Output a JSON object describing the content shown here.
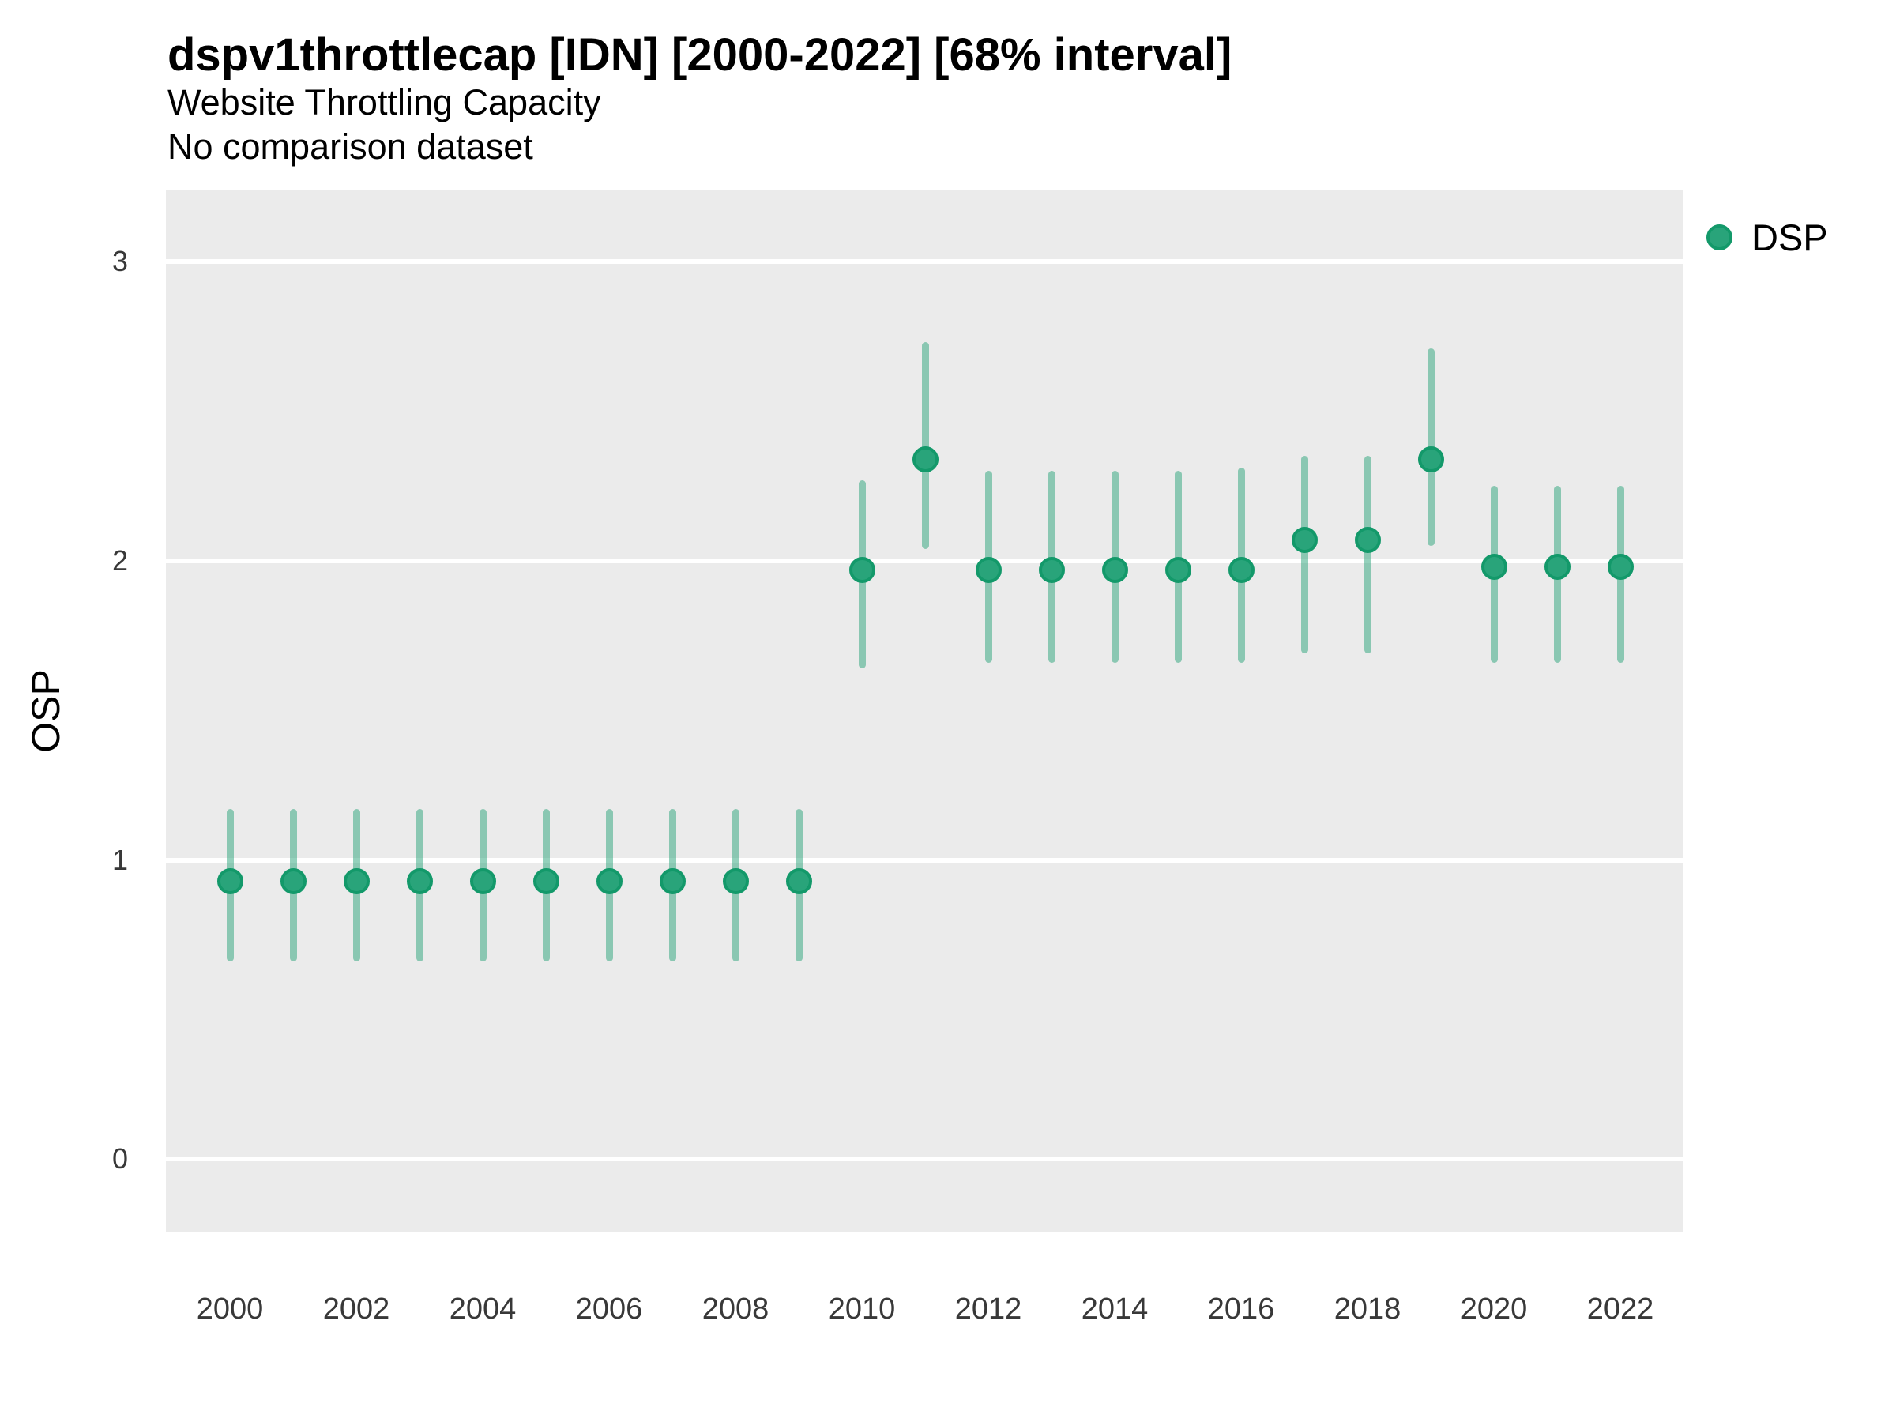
{
  "header": {
    "title": "dspv1throttlecap [IDN] [2000-2022] [68% interval]",
    "subtitle": "Website Throttling Capacity",
    "note": "No comparison dataset"
  },
  "y_axis": {
    "label": "OSP",
    "ticks": [
      0,
      1,
      2,
      3
    ]
  },
  "x_axis": {
    "ticks": [
      2000,
      2002,
      2004,
      2006,
      2008,
      2010,
      2012,
      2014,
      2016,
      2018,
      2020,
      2022
    ]
  },
  "legend": {
    "position": "top-right",
    "items": [
      {
        "label": "DSP",
        "marker": "circle-icon",
        "color": "#29a47a"
      }
    ]
  },
  "colors": {
    "point_fill": "#29a47a",
    "point_border": "#13996a",
    "interval_bar": "rgba(41,164,122,0.5)",
    "panel_background": "#ebebeb",
    "gridline": "#ffffff",
    "text": "#000000",
    "tick_text": "#383838"
  },
  "chart_data": {
    "type": "pointrange-scatter",
    "title": "dspv1throttlecap [IDN] [2000-2022] [68% interval]",
    "subtitle": "Website Throttling Capacity",
    "note": "No comparison dataset",
    "xlabel": "",
    "ylabel": "OSP",
    "interval_level": "68%",
    "grid": "horizontal-major-only",
    "legend_position": "top-right",
    "xlim": [
      1999,
      2023
    ],
    "ylim": [
      -0.24,
      3.23
    ],
    "x_ticks": [
      2000,
      2002,
      2004,
      2006,
      2008,
      2010,
      2012,
      2014,
      2016,
      2018,
      2020,
      2022
    ],
    "y_ticks": [
      0,
      1,
      2,
      3
    ],
    "series": [
      {
        "name": "DSP",
        "color": "#29a47a",
        "points": [
          {
            "x": 2000,
            "y": 0.93,
            "lo": 0.66,
            "hi": 1.17
          },
          {
            "x": 2001,
            "y": 0.93,
            "lo": 0.66,
            "hi": 1.17
          },
          {
            "x": 2002,
            "y": 0.93,
            "lo": 0.66,
            "hi": 1.17
          },
          {
            "x": 2003,
            "y": 0.93,
            "lo": 0.66,
            "hi": 1.17
          },
          {
            "x": 2004,
            "y": 0.93,
            "lo": 0.66,
            "hi": 1.17
          },
          {
            "x": 2005,
            "y": 0.93,
            "lo": 0.66,
            "hi": 1.17
          },
          {
            "x": 2006,
            "y": 0.93,
            "lo": 0.66,
            "hi": 1.17
          },
          {
            "x": 2007,
            "y": 0.93,
            "lo": 0.66,
            "hi": 1.17
          },
          {
            "x": 2008,
            "y": 0.93,
            "lo": 0.66,
            "hi": 1.17
          },
          {
            "x": 2009,
            "y": 0.93,
            "lo": 0.66,
            "hi": 1.17
          },
          {
            "x": 2010,
            "y": 1.97,
            "lo": 1.64,
            "hi": 2.27
          },
          {
            "x": 2011,
            "y": 2.34,
            "lo": 2.04,
            "hi": 2.73
          },
          {
            "x": 2012,
            "y": 1.97,
            "lo": 1.66,
            "hi": 2.3
          },
          {
            "x": 2013,
            "y": 1.97,
            "lo": 1.66,
            "hi": 2.3
          },
          {
            "x": 2014,
            "y": 1.97,
            "lo": 1.66,
            "hi": 2.3
          },
          {
            "x": 2015,
            "y": 1.97,
            "lo": 1.66,
            "hi": 2.3
          },
          {
            "x": 2016,
            "y": 1.97,
            "lo": 1.66,
            "hi": 2.31
          },
          {
            "x": 2017,
            "y": 2.07,
            "lo": 1.69,
            "hi": 2.35
          },
          {
            "x": 2018,
            "y": 2.07,
            "lo": 1.69,
            "hi": 2.35
          },
          {
            "x": 2019,
            "y": 2.34,
            "lo": 2.05,
            "hi": 2.71
          },
          {
            "x": 2020,
            "y": 1.98,
            "lo": 1.66,
            "hi": 2.25
          },
          {
            "x": 2021,
            "y": 1.98,
            "lo": 1.66,
            "hi": 2.25
          },
          {
            "x": 2022,
            "y": 1.98,
            "lo": 1.66,
            "hi": 2.25
          }
        ]
      }
    ]
  }
}
